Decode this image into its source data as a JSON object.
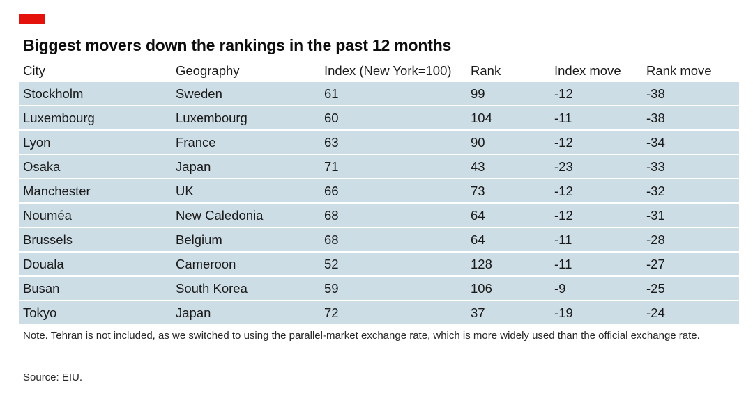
{
  "title": "Biggest movers down the rankings in the past 12 months",
  "note": "Note. Tehran is not included, as we switched to using the parallel-market exchange rate, which is more widely used than the official exchange rate.",
  "source": "Source: EIU.",
  "colors": {
    "accent": "#e3120b",
    "row_fill": "#ccdde6"
  },
  "chart_data": {
    "type": "table",
    "title": "Biggest movers down the rankings in the past 12 months",
    "columns": [
      "City",
      "Geography",
      "Index (New York=100)",
      "Rank",
      "Index move",
      "Rank move"
    ],
    "rows": [
      [
        "Stockholm",
        "Sweden",
        "61",
        "99",
        "-12",
        "-38"
      ],
      [
        "Luxembourg",
        "Luxembourg",
        "60",
        "104",
        "-11",
        "-38"
      ],
      [
        "Lyon",
        "France",
        "63",
        "90",
        "-12",
        "-34"
      ],
      [
        "Osaka",
        "Japan",
        "71",
        "43",
        "-23",
        "-33"
      ],
      [
        "Manchester",
        "UK",
        "66",
        "73",
        "-12",
        "-32"
      ],
      [
        "Nouméa",
        "New Caledonia",
        "68",
        "64",
        "-12",
        "-31"
      ],
      [
        "Brussels",
        "Belgium",
        "68",
        "64",
        "-11",
        "-28"
      ],
      [
        "Douala",
        "Cameroon",
        "52",
        "128",
        "-11",
        "-27"
      ],
      [
        "Busan",
        "South Korea",
        "59",
        "106",
        "-9",
        "-25"
      ],
      [
        "Tokyo",
        "Japan",
        "72",
        "37",
        "-19",
        "-24"
      ]
    ]
  }
}
